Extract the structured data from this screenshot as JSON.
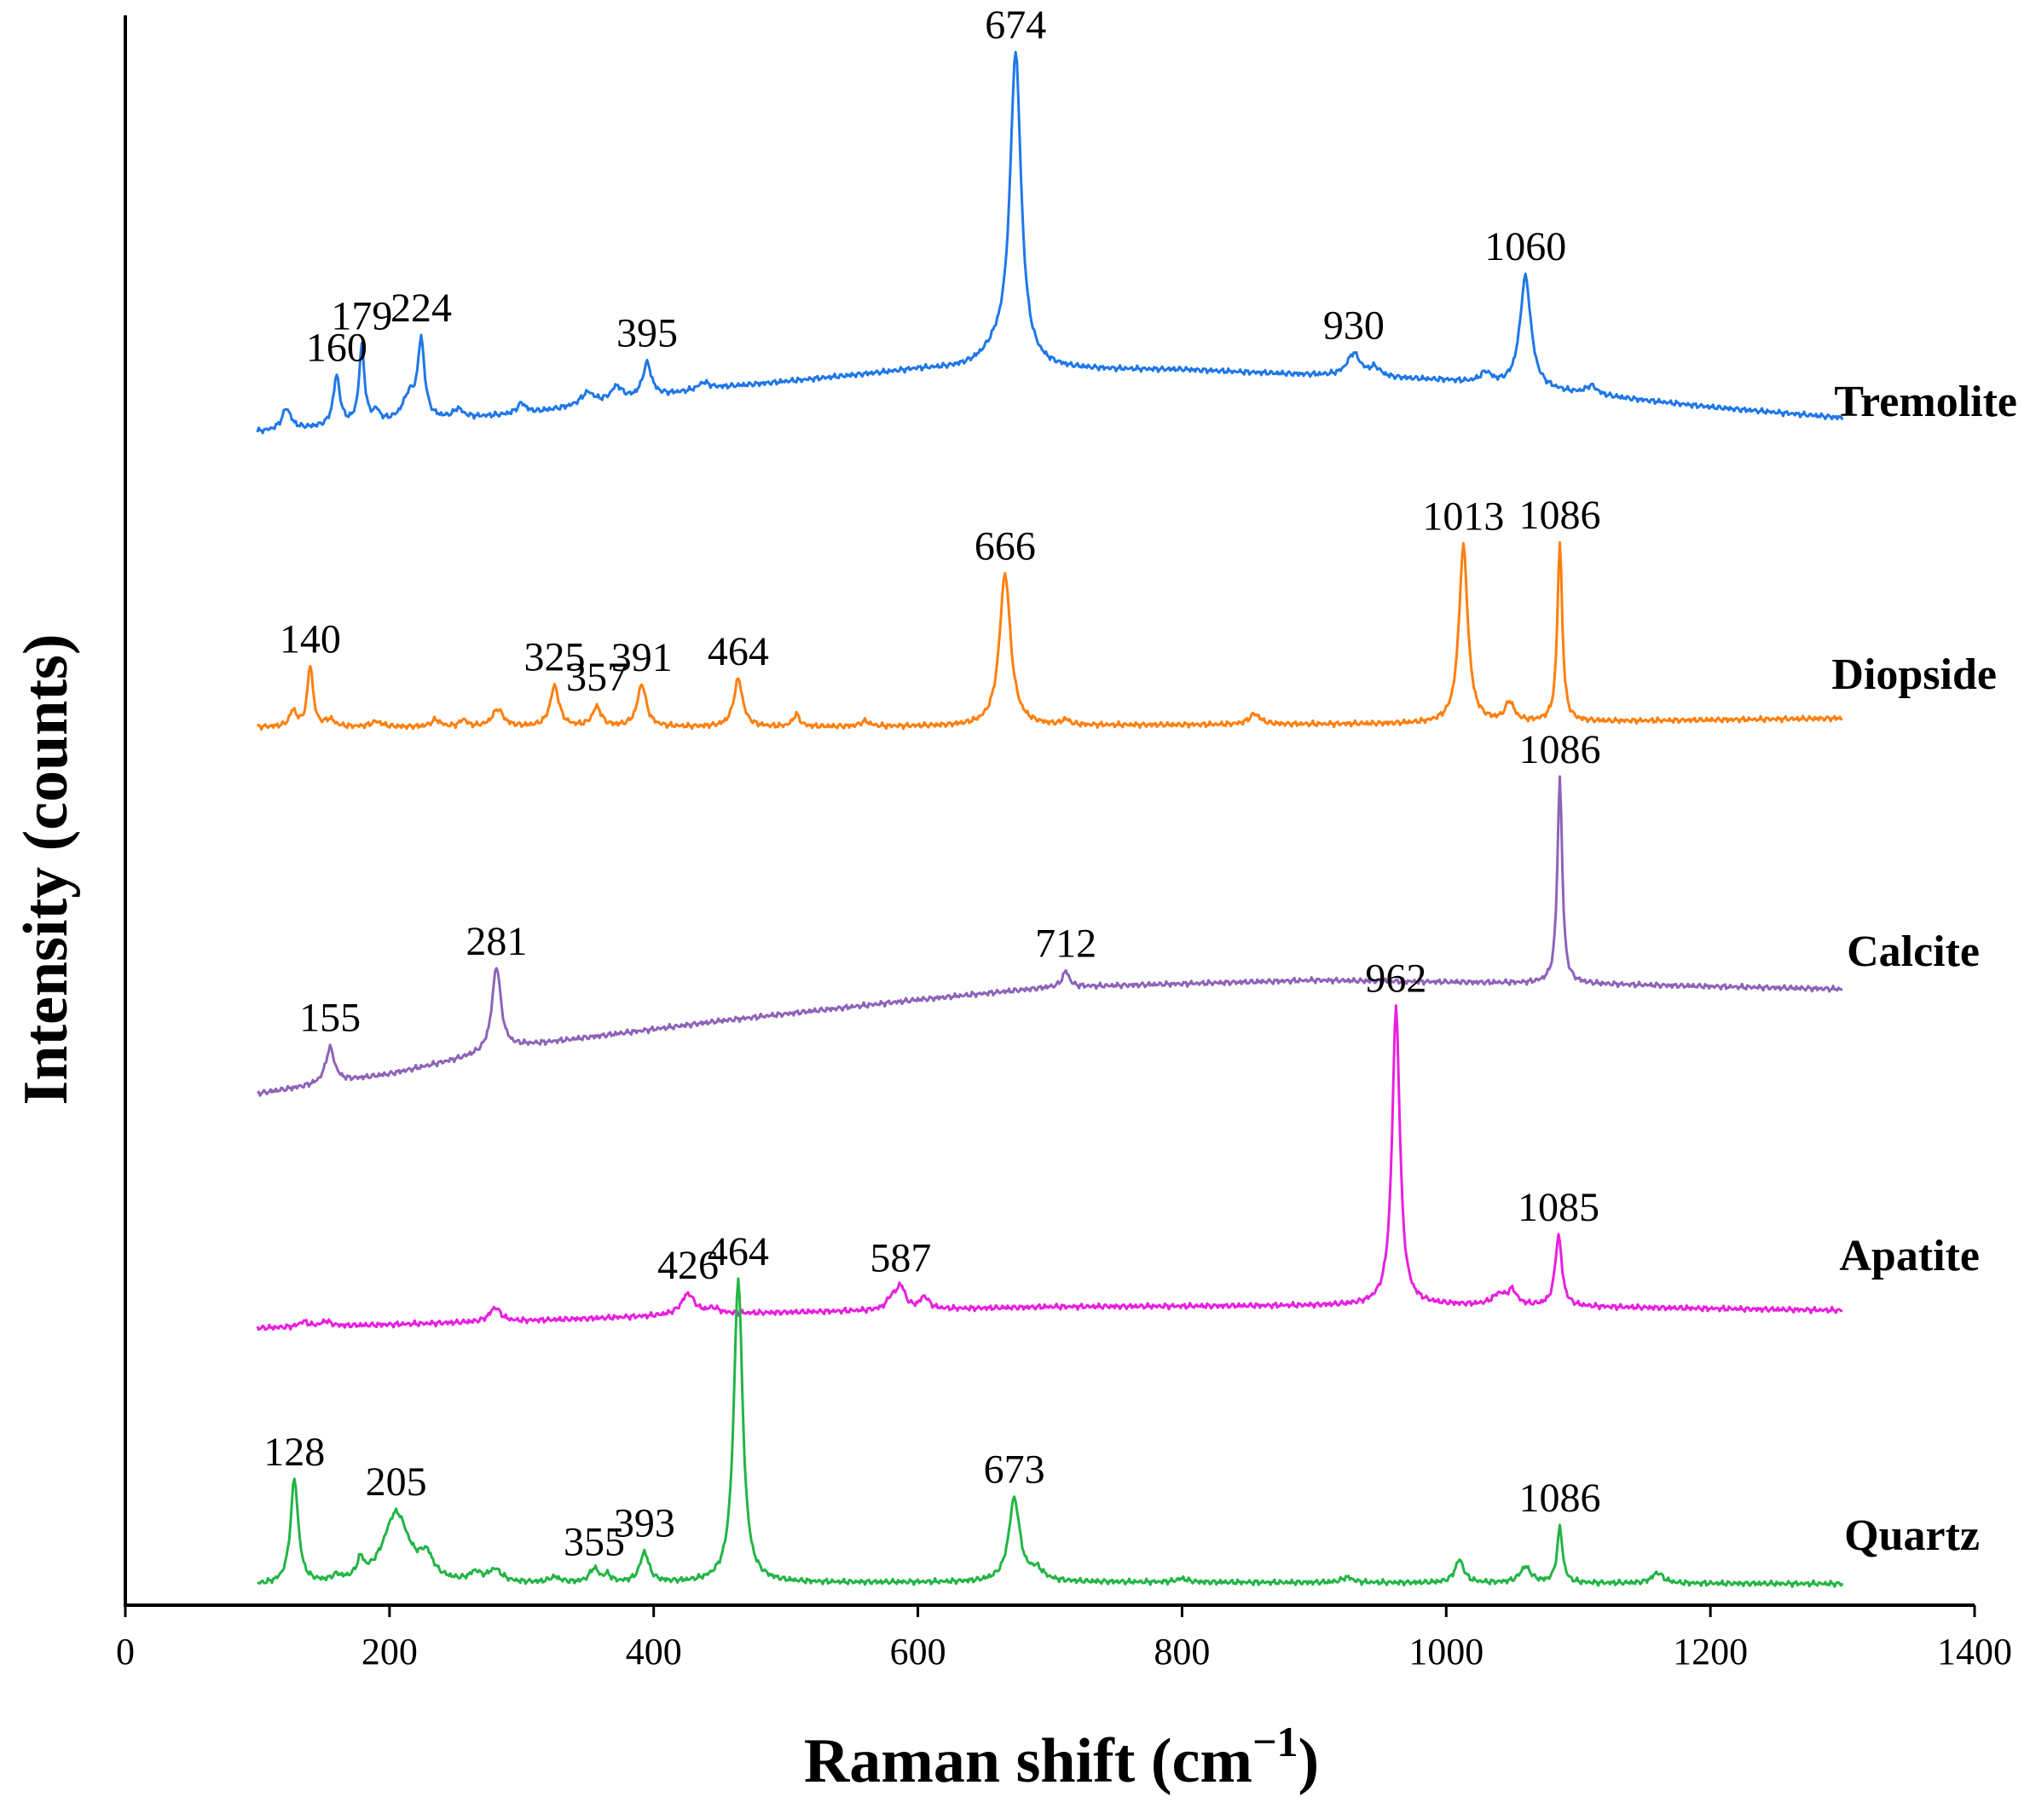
{
  "chart_data": {
    "type": "line",
    "title": "",
    "xlabel": "Raman shift (cm",
    "xlabel_sup": "−1",
    "xlabel_close": ")",
    "ylabel": "Intensity (counts)",
    "xlim": [
      0,
      1400
    ],
    "x_ticks": [
      0,
      200,
      400,
      600,
      800,
      1000,
      1200,
      1400
    ],
    "y_ticks_shown": false,
    "x_range_measured": [
      100,
      1300
    ],
    "series": [
      {
        "name": "Tremolite",
        "color": "#1f77e8",
        "baseline": [
          [
            100,
            4.0
          ],
          [
            300,
            5.0
          ],
          [
            450,
            6.5
          ],
          [
            600,
            7.5
          ],
          [
            800,
            7.5
          ],
          [
            1000,
            6.9
          ],
          [
            1200,
            5.4
          ],
          [
            1300,
            4.8
          ]
        ],
        "peaks": [
          {
            "x": 122,
            "h": 1.2,
            "w": 4
          },
          {
            "x": 160,
            "h": 2.8,
            "w": 3
          },
          {
            "x": 179,
            "h": 4.3,
            "w": 2.5
          },
          {
            "x": 190,
            "h": 0.6,
            "w": 3
          },
          {
            "x": 215,
            "h": 1.4,
            "w": 6
          },
          {
            "x": 224,
            "h": 4.3,
            "w": 3
          },
          {
            "x": 252,
            "h": 0.5,
            "w": 4
          },
          {
            "x": 300,
            "h": 0.6,
            "w": 4
          },
          {
            "x": 350,
            "h": 0.7,
            "w": 6
          },
          {
            "x": 372,
            "h": 0.8,
            "w": 5
          },
          {
            "x": 395,
            "h": 1.9,
            "w": 4
          },
          {
            "x": 438,
            "h": 0.4,
            "w": 5
          },
          {
            "x": 660,
            "h": 0.9,
            "w": 14
          },
          {
            "x": 674,
            "h": 17.5,
            "w": 5
          },
          {
            "x": 930,
            "h": 1.3,
            "w": 6
          },
          {
            "x": 946,
            "h": 0.5,
            "w": 5
          },
          {
            "x": 1030,
            "h": 0.6,
            "w": 5
          },
          {
            "x": 1060,
            "h": 6.3,
            "w": 5
          },
          {
            "x": 1110,
            "h": 0.5,
            "w": 5
          }
        ],
        "labels": [
          {
            "text": "160",
            "x": 160
          },
          {
            "text": "179",
            "x": 179
          },
          {
            "text": "224",
            "x": 224
          },
          {
            "text": "395",
            "x": 395
          },
          {
            "text": "674",
            "x": 674
          },
          {
            "text": "930",
            "x": 930
          },
          {
            "text": "1060",
            "x": 1060
          }
        ]
      },
      {
        "name": "Diopside",
        "color": "#ff7f0e",
        "baseline": [
          [
            100,
            0.0
          ],
          [
            500,
            0.0
          ],
          [
            1000,
            0.2
          ],
          [
            1300,
            0.5
          ]
        ],
        "peaks": [
          {
            "x": 127,
            "h": 0.9,
            "w": 3
          },
          {
            "x": 140,
            "h": 3.5,
            "w": 2.5
          },
          {
            "x": 155,
            "h": 0.4,
            "w": 4
          },
          {
            "x": 190,
            "h": 0.3,
            "w": 5
          },
          {
            "x": 235,
            "h": 0.4,
            "w": 4
          },
          {
            "x": 256,
            "h": 0.4,
            "w": 3
          },
          {
            "x": 282,
            "h": 1.0,
            "w": 5
          },
          {
            "x": 325,
            "h": 2.3,
            "w": 4
          },
          {
            "x": 357,
            "h": 1.1,
            "w": 4
          },
          {
            "x": 391,
            "h": 2.4,
            "w": 4
          },
          {
            "x": 464,
            "h": 2.7,
            "w": 4
          },
          {
            "x": 508,
            "h": 0.7,
            "w": 3
          },
          {
            "x": 560,
            "h": 0.3,
            "w": 4
          },
          {
            "x": 666,
            "h": 8.6,
            "w": 5
          },
          {
            "x": 712,
            "h": 0.3,
            "w": 3
          },
          {
            "x": 855,
            "h": 0.6,
            "w": 5
          },
          {
            "x": 1013,
            "h": 10.0,
            "w": 4
          },
          {
            "x": 1048,
            "h": 1.1,
            "w": 4
          },
          {
            "x": 1086,
            "h": 10.1,
            "w": 2.2
          }
        ],
        "labels": [
          {
            "text": "140",
            "x": 140
          },
          {
            "text": "325",
            "x": 325
          },
          {
            "text": "357",
            "x": 357
          },
          {
            "text": "391",
            "x": 391
          },
          {
            "text": "464",
            "x": 464
          },
          {
            "text": "666",
            "x": 666
          },
          {
            "text": "1013",
            "x": 1013
          },
          {
            "text": "1086",
            "x": 1086
          }
        ]
      },
      {
        "name": "Calcite",
        "color": "#8e63b8",
        "baseline": [
          [
            100,
            0.0
          ],
          [
            200,
            1.1
          ],
          [
            300,
            2.7
          ],
          [
            450,
            4.1
          ],
          [
            600,
            5.3
          ],
          [
            700,
            6.0
          ],
          [
            900,
            6.4
          ],
          [
            1100,
            6.2
          ],
          [
            1300,
            5.9
          ]
        ],
        "peaks": [
          {
            "x": 155,
            "h": 2.0,
            "w": 4
          },
          {
            "x": 281,
            "h": 4.8,
            "w": 4
          },
          {
            "x": 712,
            "h": 0.9,
            "w": 3
          },
          {
            "x": 1086,
            "h": 11.6,
            "w": 2.2
          }
        ],
        "labels": [
          {
            "text": "155",
            "x": 155
          },
          {
            "text": "281",
            "x": 281
          },
          {
            "text": "712",
            "x": 712
          },
          {
            "text": "1086",
            "x": 1086
          }
        ]
      },
      {
        "name": "Apatite",
        "color": "#e91ee0",
        "baseline": [
          [
            100,
            0.0
          ],
          [
            300,
            0.4
          ],
          [
            450,
            0.8
          ],
          [
            700,
            1.2
          ],
          [
            1000,
            1.3
          ],
          [
            1300,
            1.0
          ]
        ],
        "peaks": [
          {
            "x": 135,
            "h": 0.3,
            "w": 4
          },
          {
            "x": 152,
            "h": 0.3,
            "w": 4
          },
          {
            "x": 280,
            "h": 0.8,
            "w": 5
          },
          {
            "x": 426,
            "h": 1.2,
            "w": 6
          },
          {
            "x": 445,
            "h": 0.3,
            "w": 5
          },
          {
            "x": 580,
            "h": 0.6,
            "w": 4
          },
          {
            "x": 587,
            "h": 1.3,
            "w": 4
          },
          {
            "x": 605,
            "h": 0.7,
            "w": 4
          },
          {
            "x": 962,
            "h": 16.8,
            "w": 3.5
          },
          {
            "x": 1040,
            "h": 0.6,
            "w": 6
          },
          {
            "x": 1050,
            "h": 0.8,
            "w": 4
          },
          {
            "x": 1085,
            "h": 4.0,
            "w": 3
          }
        ],
        "labels": [
          {
            "text": "426",
            "x": 426
          },
          {
            "text": "587",
            "x": 587
          },
          {
            "text": "962",
            "x": 962
          },
          {
            "text": "1085",
            "x": 1085
          }
        ]
      },
      {
        "name": "Quartz",
        "color": "#22b545",
        "baseline": [
          [
            100,
            0.0
          ],
          [
            300,
            0.1
          ],
          [
            700,
            0.2
          ],
          [
            1300,
            0.1
          ]
        ],
        "peaks": [
          {
            "x": 128,
            "h": 5.9,
            "w": 3.5
          },
          {
            "x": 160,
            "h": 0.3,
            "w": 4
          },
          {
            "x": 178,
            "h": 1.0,
            "w": 3
          },
          {
            "x": 205,
            "h": 4.0,
            "w": 12
          },
          {
            "x": 228,
            "h": 1.2,
            "w": 6
          },
          {
            "x": 265,
            "h": 0.5,
            "w": 5
          },
          {
            "x": 280,
            "h": 0.7,
            "w": 6
          },
          {
            "x": 325,
            "h": 0.3,
            "w": 5
          },
          {
            "x": 355,
            "h": 0.8,
            "w": 4
          },
          {
            "x": 365,
            "h": 0.4,
            "w": 3
          },
          {
            "x": 393,
            "h": 1.7,
            "w": 4
          },
          {
            "x": 464,
            "h": 17.2,
            "w": 4
          },
          {
            "x": 673,
            "h": 4.7,
            "w": 5
          },
          {
            "x": 690,
            "h": 0.6,
            "w": 6
          },
          {
            "x": 800,
            "h": 0.2,
            "w": 5
          },
          {
            "x": 925,
            "h": 0.3,
            "w": 5
          },
          {
            "x": 1010,
            "h": 1.3,
            "w": 4
          },
          {
            "x": 1060,
            "h": 0.9,
            "w": 5
          },
          {
            "x": 1086,
            "h": 3.1,
            "w": 2.5
          },
          {
            "x": 1160,
            "h": 0.6,
            "w": 5
          }
        ],
        "labels": [
          {
            "text": "128",
            "x": 128
          },
          {
            "text": "205",
            "x": 205
          },
          {
            "text": "355",
            "x": 355
          },
          {
            "text": "393",
            "x": 393
          },
          {
            "text": "464",
            "x": 464
          },
          {
            "text": "673",
            "x": 673
          },
          {
            "text": "1086",
            "x": 1086
          }
        ]
      }
    ]
  }
}
